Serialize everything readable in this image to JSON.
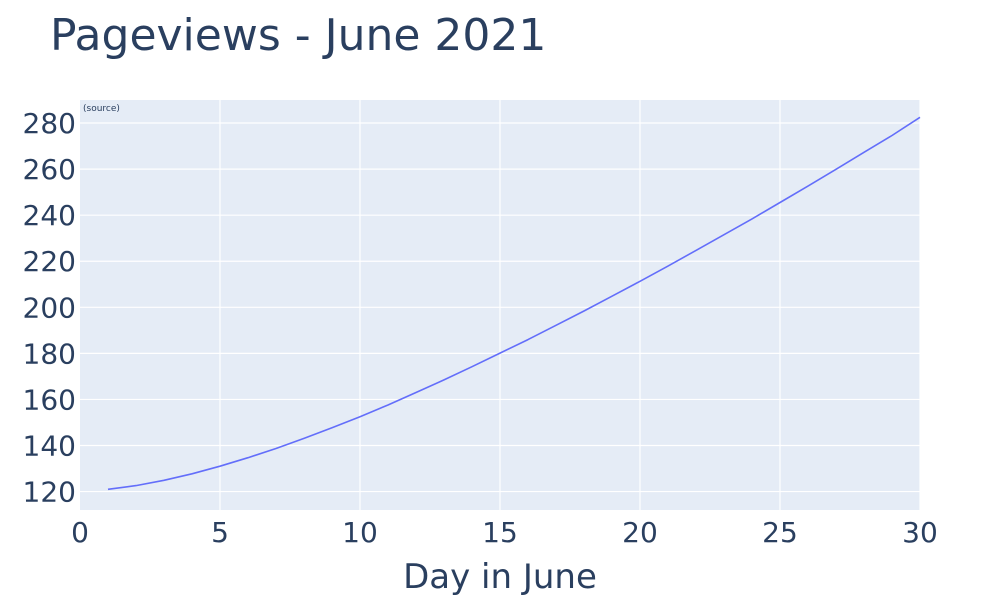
{
  "chart_data": {
    "type": "line",
    "title": "Pageviews - June 2021",
    "xlabel": "Day in June",
    "ylabel": "",
    "annotation": "(source)",
    "xlim": [
      0,
      30
    ],
    "ylim": [
      112,
      290
    ],
    "xticks": [
      0,
      5,
      10,
      15,
      20,
      25,
      30
    ],
    "yticks": [
      120,
      140,
      160,
      180,
      200,
      220,
      240,
      260,
      280
    ],
    "grid": true,
    "colors": {
      "plot_bg": "#e5ecf6",
      "grid": "#ffffff",
      "line": "#636efa",
      "text": "#2a3f5f"
    },
    "series": [
      {
        "x": [
          1,
          2,
          3,
          4,
          5,
          6,
          7,
          8,
          9,
          10,
          11,
          12,
          13,
          14,
          15,
          16,
          17,
          18,
          19,
          20,
          21,
          22,
          23,
          24,
          25,
          26,
          27,
          28,
          29,
          30
        ],
        "values": [
          121,
          122.6,
          124.9,
          127.7,
          131,
          134.7,
          138.7,
          143.1,
          147.7,
          152.5,
          157.6,
          163,
          168.5,
          174.2,
          180.1,
          186,
          192.2,
          198.4,
          204.8,
          211.3,
          217.9,
          224.7,
          231.5,
          238.4,
          245.5,
          252.6,
          259.9,
          267.3,
          274.6,
          282.5
        ]
      }
    ]
  }
}
